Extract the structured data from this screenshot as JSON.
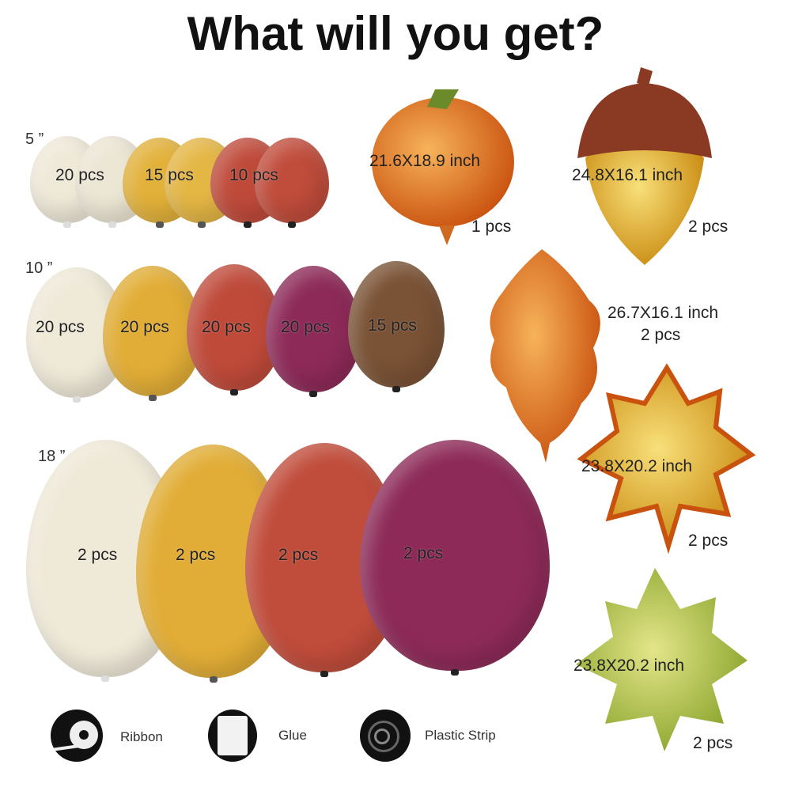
{
  "title": "What will you get?",
  "colors": {
    "ivory": "#efe9d8",
    "mustard": "#e1ad36",
    "terracotta": "#bf4a3a",
    "burgundy": "#8d2a58",
    "brown": "#7a5235"
  },
  "rows": [
    {
      "size": "5 ”",
      "labels": [
        "20 pcs",
        "15 pcs",
        "10 pcs"
      ]
    },
    {
      "size": "10 ”",
      "labels": [
        "20 pcs",
        "20 pcs",
        "20 pcs",
        "20 pcs",
        "15 pcs"
      ]
    },
    {
      "size": "18 ”",
      "labels": [
        "2 pcs",
        "2 pcs",
        "2 pcs",
        "2 pcs"
      ]
    }
  ],
  "foils": [
    {
      "name": "pumpkin",
      "dims": "21.6X18.9 inch",
      "qty": "1 pcs"
    },
    {
      "name": "acorn",
      "dims": "24.8X16.1 inch",
      "qty": "2 pcs"
    },
    {
      "name": "oak-leaf",
      "dims": "26.7X16.1 inch",
      "qty": "2 pcs"
    },
    {
      "name": "maple-leaf-orange",
      "dims": "23.8X20.2 inch",
      "qty": "2 pcs"
    },
    {
      "name": "maple-leaf-green",
      "dims": "23.8X20.2 inch",
      "qty": "2 pcs"
    }
  ],
  "accessories": [
    {
      "label": "Ribbon",
      "icon": "ribbon-icon"
    },
    {
      "label": "Glue",
      "icon": "glue-icon"
    },
    {
      "label": "Plastic Strip",
      "icon": "plastic-strip-icon"
    }
  ]
}
